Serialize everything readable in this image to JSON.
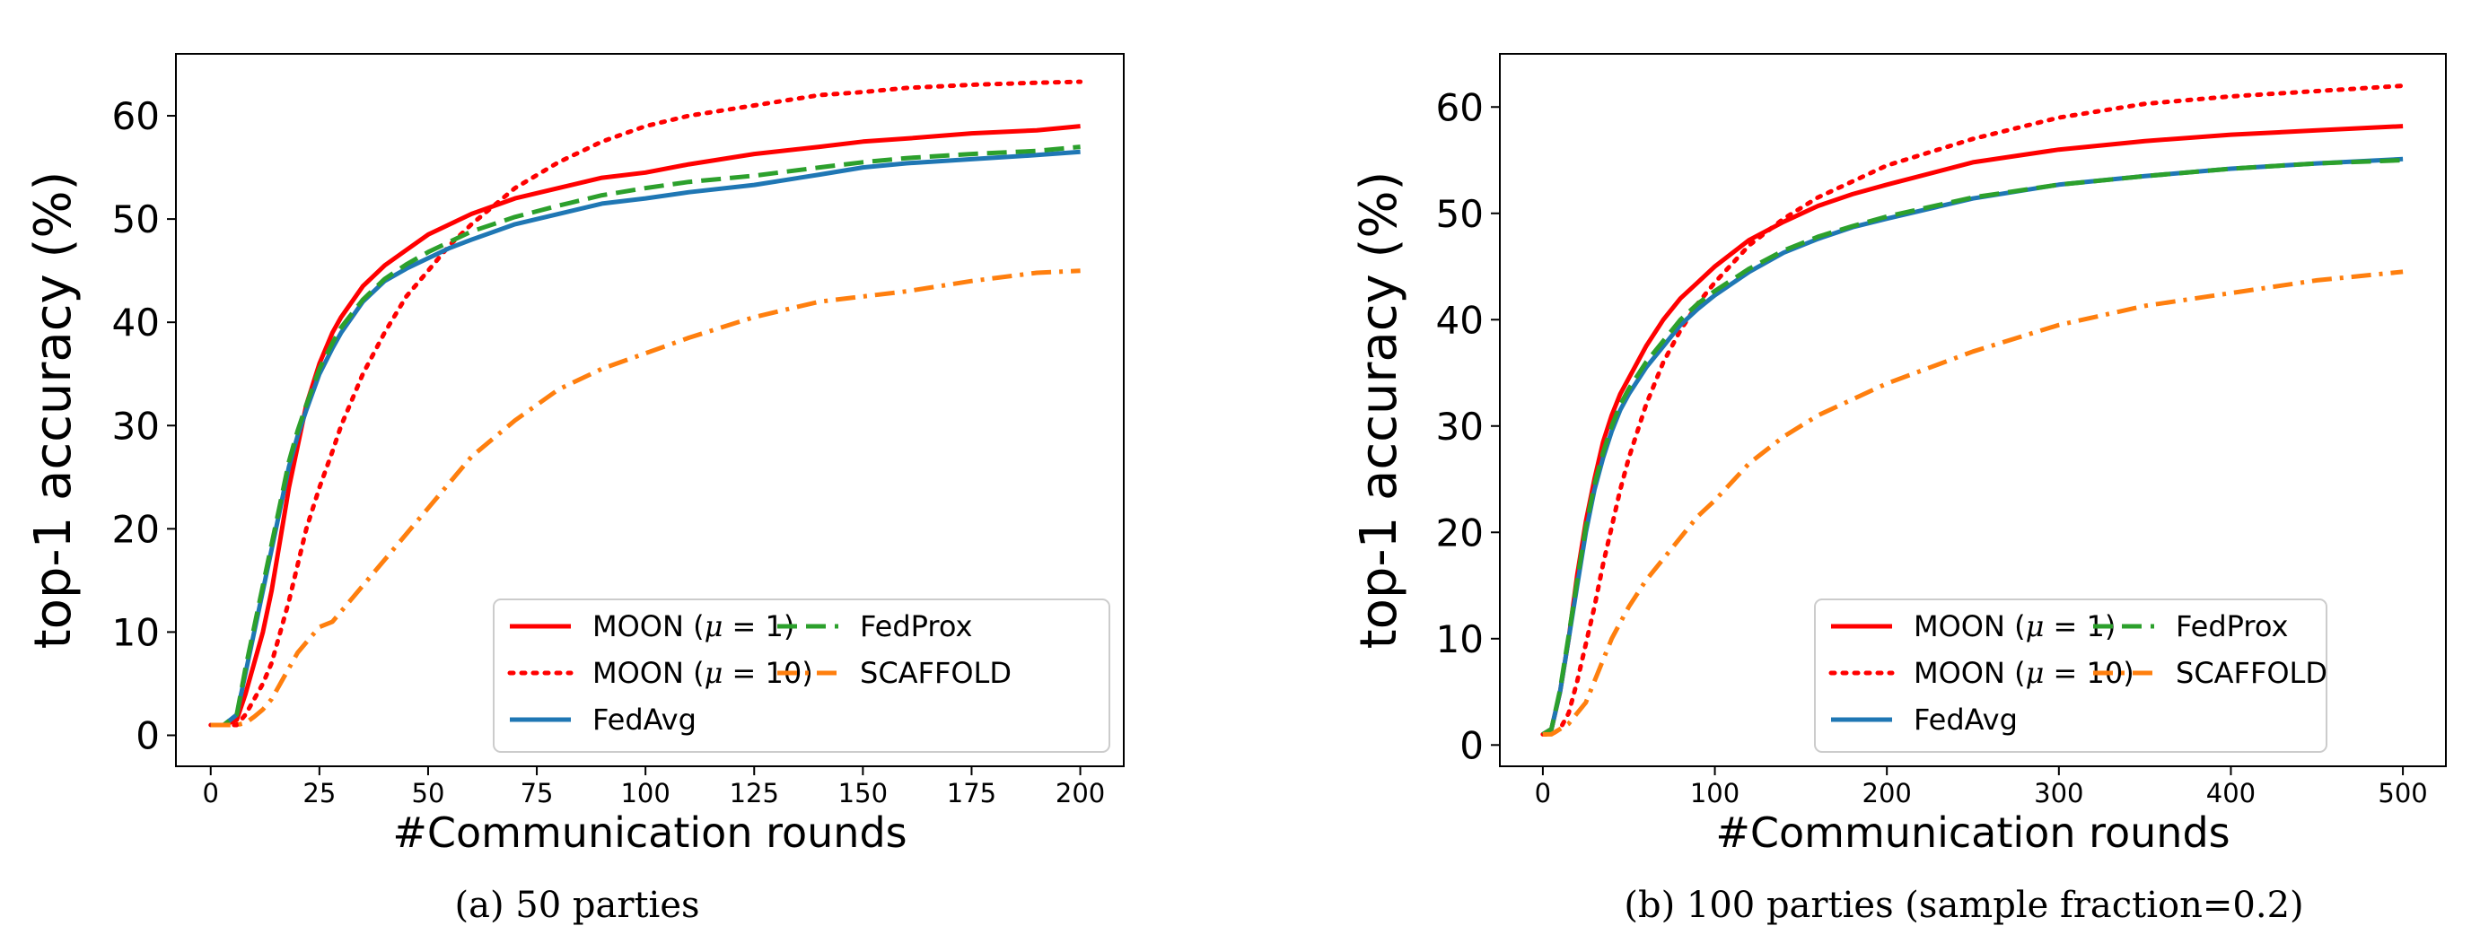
{
  "chart_data": [
    {
      "type": "line",
      "caption": "(a) 50 parties",
      "xlabel": "#Communication rounds",
      "ylabel": "top-1 accuracy (%)",
      "xlim": [
        -8,
        210
      ],
      "ylim": [
        -3,
        66
      ],
      "xticks": [
        0,
        25,
        50,
        75,
        100,
        125,
        150,
        175,
        200
      ],
      "yticks": [
        0,
        10,
        20,
        30,
        40,
        50,
        60
      ],
      "grid": false,
      "legend": {
        "placement": "lower-right",
        "columns": 2
      },
      "series": [
        {
          "name": "MOON (μ = 1)",
          "color": "#ff0000",
          "style": "solid",
          "x": [
            0,
            3,
            6,
            8,
            10,
            12,
            14,
            16,
            18,
            20,
            22,
            25,
            28,
            30,
            35,
            40,
            45,
            50,
            55,
            60,
            70,
            80,
            90,
            100,
            110,
            125,
            140,
            150,
            160,
            175,
            190,
            200
          ],
          "y": [
            1,
            1,
            1.5,
            4,
            7,
            10,
            14,
            19,
            24,
            28,
            32,
            36,
            39,
            40.5,
            43.5,
            45.5,
            47,
            48.5,
            49.5,
            50.5,
            52,
            53,
            54,
            54.5,
            55.3,
            56.3,
            57,
            57.5,
            57.8,
            58.3,
            58.6,
            59
          ]
        },
        {
          "name": "MOON (μ = 10)",
          "color": "#ff0000",
          "style": "dotted",
          "x": [
            0,
            3,
            6,
            8,
            10,
            12,
            14,
            16,
            18,
            20,
            22,
            25,
            28,
            30,
            35,
            40,
            45,
            50,
            55,
            60,
            70,
            80,
            90,
            100,
            110,
            125,
            140,
            150,
            160,
            175,
            190,
            200
          ],
          "y": [
            1,
            1,
            1,
            2,
            3.5,
            5,
            7,
            10,
            13,
            16.5,
            20,
            24,
            27.5,
            30,
            35,
            39,
            42.5,
            45,
            47.5,
            49.5,
            53,
            55.5,
            57.5,
            59,
            60,
            61,
            62,
            62.3,
            62.7,
            63,
            63.2,
            63.3
          ]
        },
        {
          "name": "FedAvg",
          "color": "#1f77b4",
          "style": "solid",
          "x": [
            0,
            3,
            6,
            8,
            10,
            12,
            14,
            16,
            18,
            20,
            22,
            25,
            28,
            30,
            35,
            40,
            45,
            50,
            55,
            60,
            70,
            80,
            90,
            100,
            110,
            125,
            140,
            150,
            160,
            175,
            190,
            200
          ],
          "y": [
            1,
            1,
            2,
            6,
            10,
            14,
            18,
            22,
            26,
            29,
            31.5,
            35,
            37.5,
            39,
            42,
            44,
            45.2,
            46.2,
            47.2,
            48,
            49.5,
            50.5,
            51.5,
            52,
            52.6,
            53.3,
            54.3,
            55,
            55.4,
            55.8,
            56.2,
            56.5
          ]
        },
        {
          "name": "FedProx",
          "color": "#2ca02c",
          "style": "dashed",
          "x": [
            0,
            3,
            6,
            8,
            10,
            12,
            14,
            16,
            18,
            20,
            22,
            25,
            28,
            30,
            35,
            40,
            45,
            50,
            55,
            60,
            70,
            80,
            90,
            100,
            110,
            125,
            140,
            150,
            160,
            175,
            190,
            200
          ],
          "y": [
            1,
            1,
            2,
            6.5,
            10.5,
            14.5,
            18.5,
            22.5,
            26.5,
            29.5,
            32,
            35.5,
            38,
            39.5,
            42.2,
            44.2,
            45.6,
            46.8,
            47.8,
            48.8,
            50.2,
            51.3,
            52.3,
            53,
            53.6,
            54.2,
            55,
            55.5,
            55.9,
            56.3,
            56.6,
            57
          ]
        },
        {
          "name": "SCAFFOLD",
          "color": "#ff7f0e",
          "style": "dashdot",
          "x": [
            0,
            3,
            6,
            8,
            10,
            12,
            14,
            16,
            18,
            20,
            22,
            25,
            28,
            30,
            35,
            40,
            45,
            50,
            55,
            60,
            70,
            80,
            90,
            100,
            110,
            125,
            140,
            150,
            160,
            175,
            190,
            200
          ],
          "y": [
            1,
            1,
            1,
            1.2,
            1.8,
            2.5,
            3.5,
            5,
            6.5,
            8,
            9,
            10.5,
            11,
            12,
            14.5,
            17,
            19.5,
            22,
            24.5,
            27,
            30.5,
            33.5,
            35.5,
            37,
            38.5,
            40.5,
            42,
            42.5,
            43,
            44,
            44.8,
            45
          ]
        }
      ]
    },
    {
      "type": "line",
      "caption": "(b) 100 parties (sample fraction=0.2)",
      "xlabel": "#Communication rounds",
      "ylabel": "top-1 accuracy (%)",
      "xlim": [
        -25,
        525
      ],
      "ylim": [
        -2,
        65
      ],
      "xticks": [
        0,
        100,
        200,
        300,
        400,
        500
      ],
      "yticks": [
        0,
        10,
        20,
        30,
        40,
        50,
        60
      ],
      "grid": false,
      "legend": {
        "placement": "lower-right",
        "columns": 2
      },
      "series": [
        {
          "name": "MOON (μ = 1)",
          "color": "#ff0000",
          "style": "solid",
          "x": [
            0,
            5,
            10,
            15,
            20,
            25,
            30,
            35,
            40,
            45,
            50,
            60,
            70,
            80,
            90,
            100,
            120,
            140,
            160,
            180,
            200,
            250,
            300,
            350,
            400,
            450,
            500
          ],
          "y": [
            1,
            1.5,
            5,
            10,
            16,
            21,
            25,
            28.5,
            31,
            33,
            34.5,
            37.5,
            40,
            42,
            43.5,
            45,
            47.5,
            49.2,
            50.7,
            51.8,
            52.7,
            54.8,
            56,
            56.8,
            57.4,
            57.8,
            58.2
          ]
        },
        {
          "name": "MOON (μ = 10)",
          "color": "#ff0000",
          "style": "dotted",
          "x": [
            0,
            5,
            10,
            15,
            20,
            25,
            30,
            35,
            40,
            45,
            50,
            60,
            70,
            80,
            90,
            100,
            120,
            140,
            160,
            180,
            200,
            250,
            300,
            350,
            400,
            450,
            500
          ],
          "y": [
            1,
            1,
            1.5,
            3,
            6,
            9.5,
            13,
            17,
            20.5,
            24,
            27,
            32,
            36,
            39,
            41.5,
            43.5,
            47,
            49.5,
            51.5,
            53,
            54.5,
            57,
            59,
            60.3,
            61,
            61.5,
            62
          ]
        },
        {
          "name": "FedAvg",
          "color": "#1f77b4",
          "style": "solid",
          "x": [
            0,
            5,
            10,
            15,
            20,
            25,
            30,
            35,
            40,
            45,
            50,
            60,
            70,
            80,
            90,
            100,
            120,
            140,
            160,
            180,
            200,
            250,
            300,
            350,
            400,
            450,
            500
          ],
          "y": [
            1,
            1.5,
            5,
            10,
            15,
            20,
            24,
            27,
            29.5,
            31.5,
            33,
            35.5,
            37.5,
            39.5,
            41,
            42.3,
            44.5,
            46.3,
            47.6,
            48.7,
            49.5,
            51.4,
            52.7,
            53.5,
            54.2,
            54.7,
            55.1
          ]
        },
        {
          "name": "FedProx",
          "color": "#2ca02c",
          "style": "dashed",
          "x": [
            0,
            5,
            10,
            15,
            20,
            25,
            30,
            35,
            40,
            45,
            50,
            60,
            70,
            80,
            90,
            100,
            120,
            140,
            160,
            180,
            200,
            250,
            300,
            350,
            400,
            450,
            500
          ],
          "y": [
            1,
            1.5,
            5.2,
            10.3,
            15.5,
            20.5,
            24.5,
            27.5,
            30,
            32,
            33.5,
            36,
            38,
            40,
            41.5,
            42.7,
            44.8,
            46.5,
            47.8,
            48.8,
            49.7,
            51.5,
            52.7,
            53.5,
            54.2,
            54.7,
            55
          ]
        },
        {
          "name": "SCAFFOLD",
          "color": "#ff7f0e",
          "style": "dashdot",
          "x": [
            0,
            5,
            10,
            15,
            20,
            25,
            30,
            35,
            40,
            45,
            50,
            60,
            70,
            80,
            90,
            100,
            120,
            140,
            160,
            180,
            200,
            250,
            300,
            350,
            400,
            450,
            500
          ],
          "y": [
            1,
            1,
            1.5,
            2,
            3,
            4,
            6,
            8,
            10,
            11.5,
            13,
            15.5,
            17.5,
            19.5,
            21.5,
            23,
            26.5,
            29,
            31,
            32.5,
            34,
            37,
            39.5,
            41.3,
            42.5,
            43.7,
            44.5
          ]
        }
      ]
    }
  ]
}
